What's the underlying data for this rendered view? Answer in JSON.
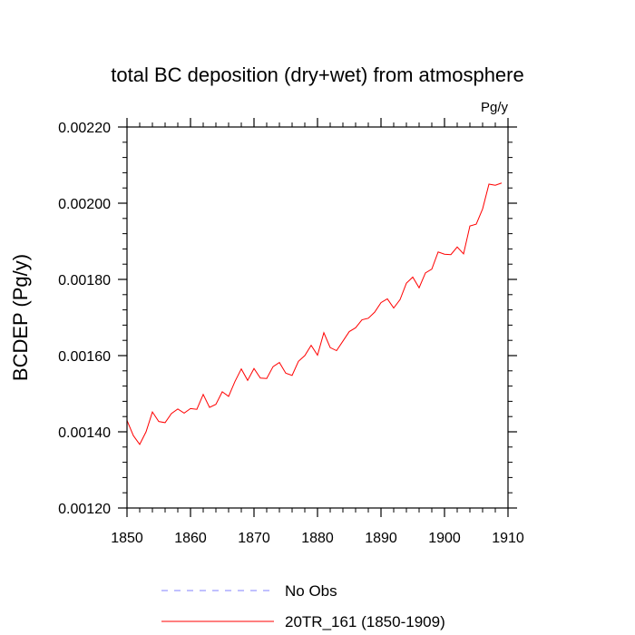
{
  "chart_data": {
    "type": "line",
    "title": "total BC deposition (dry+wet) from atmosphere",
    "units": "Pg/y",
    "xlabel": "",
    "ylabel": "BCDEP  (Pg/y)",
    "xlim": [
      1850,
      1910
    ],
    "ylim": [
      0.0012,
      0.0022
    ],
    "xticks": [
      1850,
      1860,
      1870,
      1880,
      1890,
      1900,
      1910
    ],
    "xtick_labels": [
      "1850",
      "1860",
      "1870",
      "1880",
      "1890",
      "1900",
      "1910"
    ],
    "yticks": [
      0.0012,
      0.0014,
      0.0016,
      0.0018,
      0.002,
      0.0022
    ],
    "ytick_labels": [
      "0.00120",
      "0.00140",
      "0.00160",
      "0.00180",
      "0.00200",
      "0.00220"
    ],
    "legend": [
      {
        "label": "No Obs",
        "color": "#8080ff",
        "style": "dashed"
      },
      {
        "label": "20TR_161 (1850-1909)",
        "color": "#ff0000",
        "style": "solid"
      }
    ],
    "legend_position": "bottom",
    "series": [
      {
        "name": "20TR_161 (1850-1909)",
        "color": "#ff0000",
        "x": [
          1850,
          1851,
          1852,
          1853,
          1854,
          1855,
          1856,
          1857,
          1858,
          1859,
          1860,
          1861,
          1862,
          1863,
          1864,
          1865,
          1866,
          1867,
          1868,
          1869,
          1870,
          1871,
          1872,
          1873,
          1874,
          1875,
          1876,
          1877,
          1878,
          1879,
          1880,
          1881,
          1882,
          1883,
          1884,
          1885,
          1886,
          1887,
          1888,
          1889,
          1890,
          1891,
          1892,
          1893,
          1894,
          1895,
          1896,
          1897,
          1898,
          1899,
          1900,
          1901,
          1902,
          1903,
          1904,
          1905,
          1906,
          1907,
          1908,
          1909
        ],
        "values": [
          0.00143,
          0.00139,
          0.001367,
          0.0014,
          0.001452,
          0.001427,
          0.001424,
          0.001448,
          0.00146,
          0.001449,
          0.001461,
          0.001459,
          0.001498,
          0.001464,
          0.001472,
          0.001505,
          0.001493,
          0.001532,
          0.001565,
          0.001535,
          0.001566,
          0.001541,
          0.00154,
          0.001571,
          0.001582,
          0.001554,
          0.001548,
          0.001585,
          0.0016,
          0.001627,
          0.001601,
          0.00166,
          0.001621,
          0.001613,
          0.001638,
          0.001663,
          0.001673,
          0.001694,
          0.001698,
          0.001714,
          0.001739,
          0.001749,
          0.001725,
          0.001747,
          0.00179,
          0.001806,
          0.001778,
          0.001817,
          0.001827,
          0.001872,
          0.001866,
          0.001865,
          0.001885,
          0.001867,
          0.00194,
          0.001945,
          0.001985,
          0.00205,
          0.002047,
          0.002053
        ]
      }
    ]
  }
}
